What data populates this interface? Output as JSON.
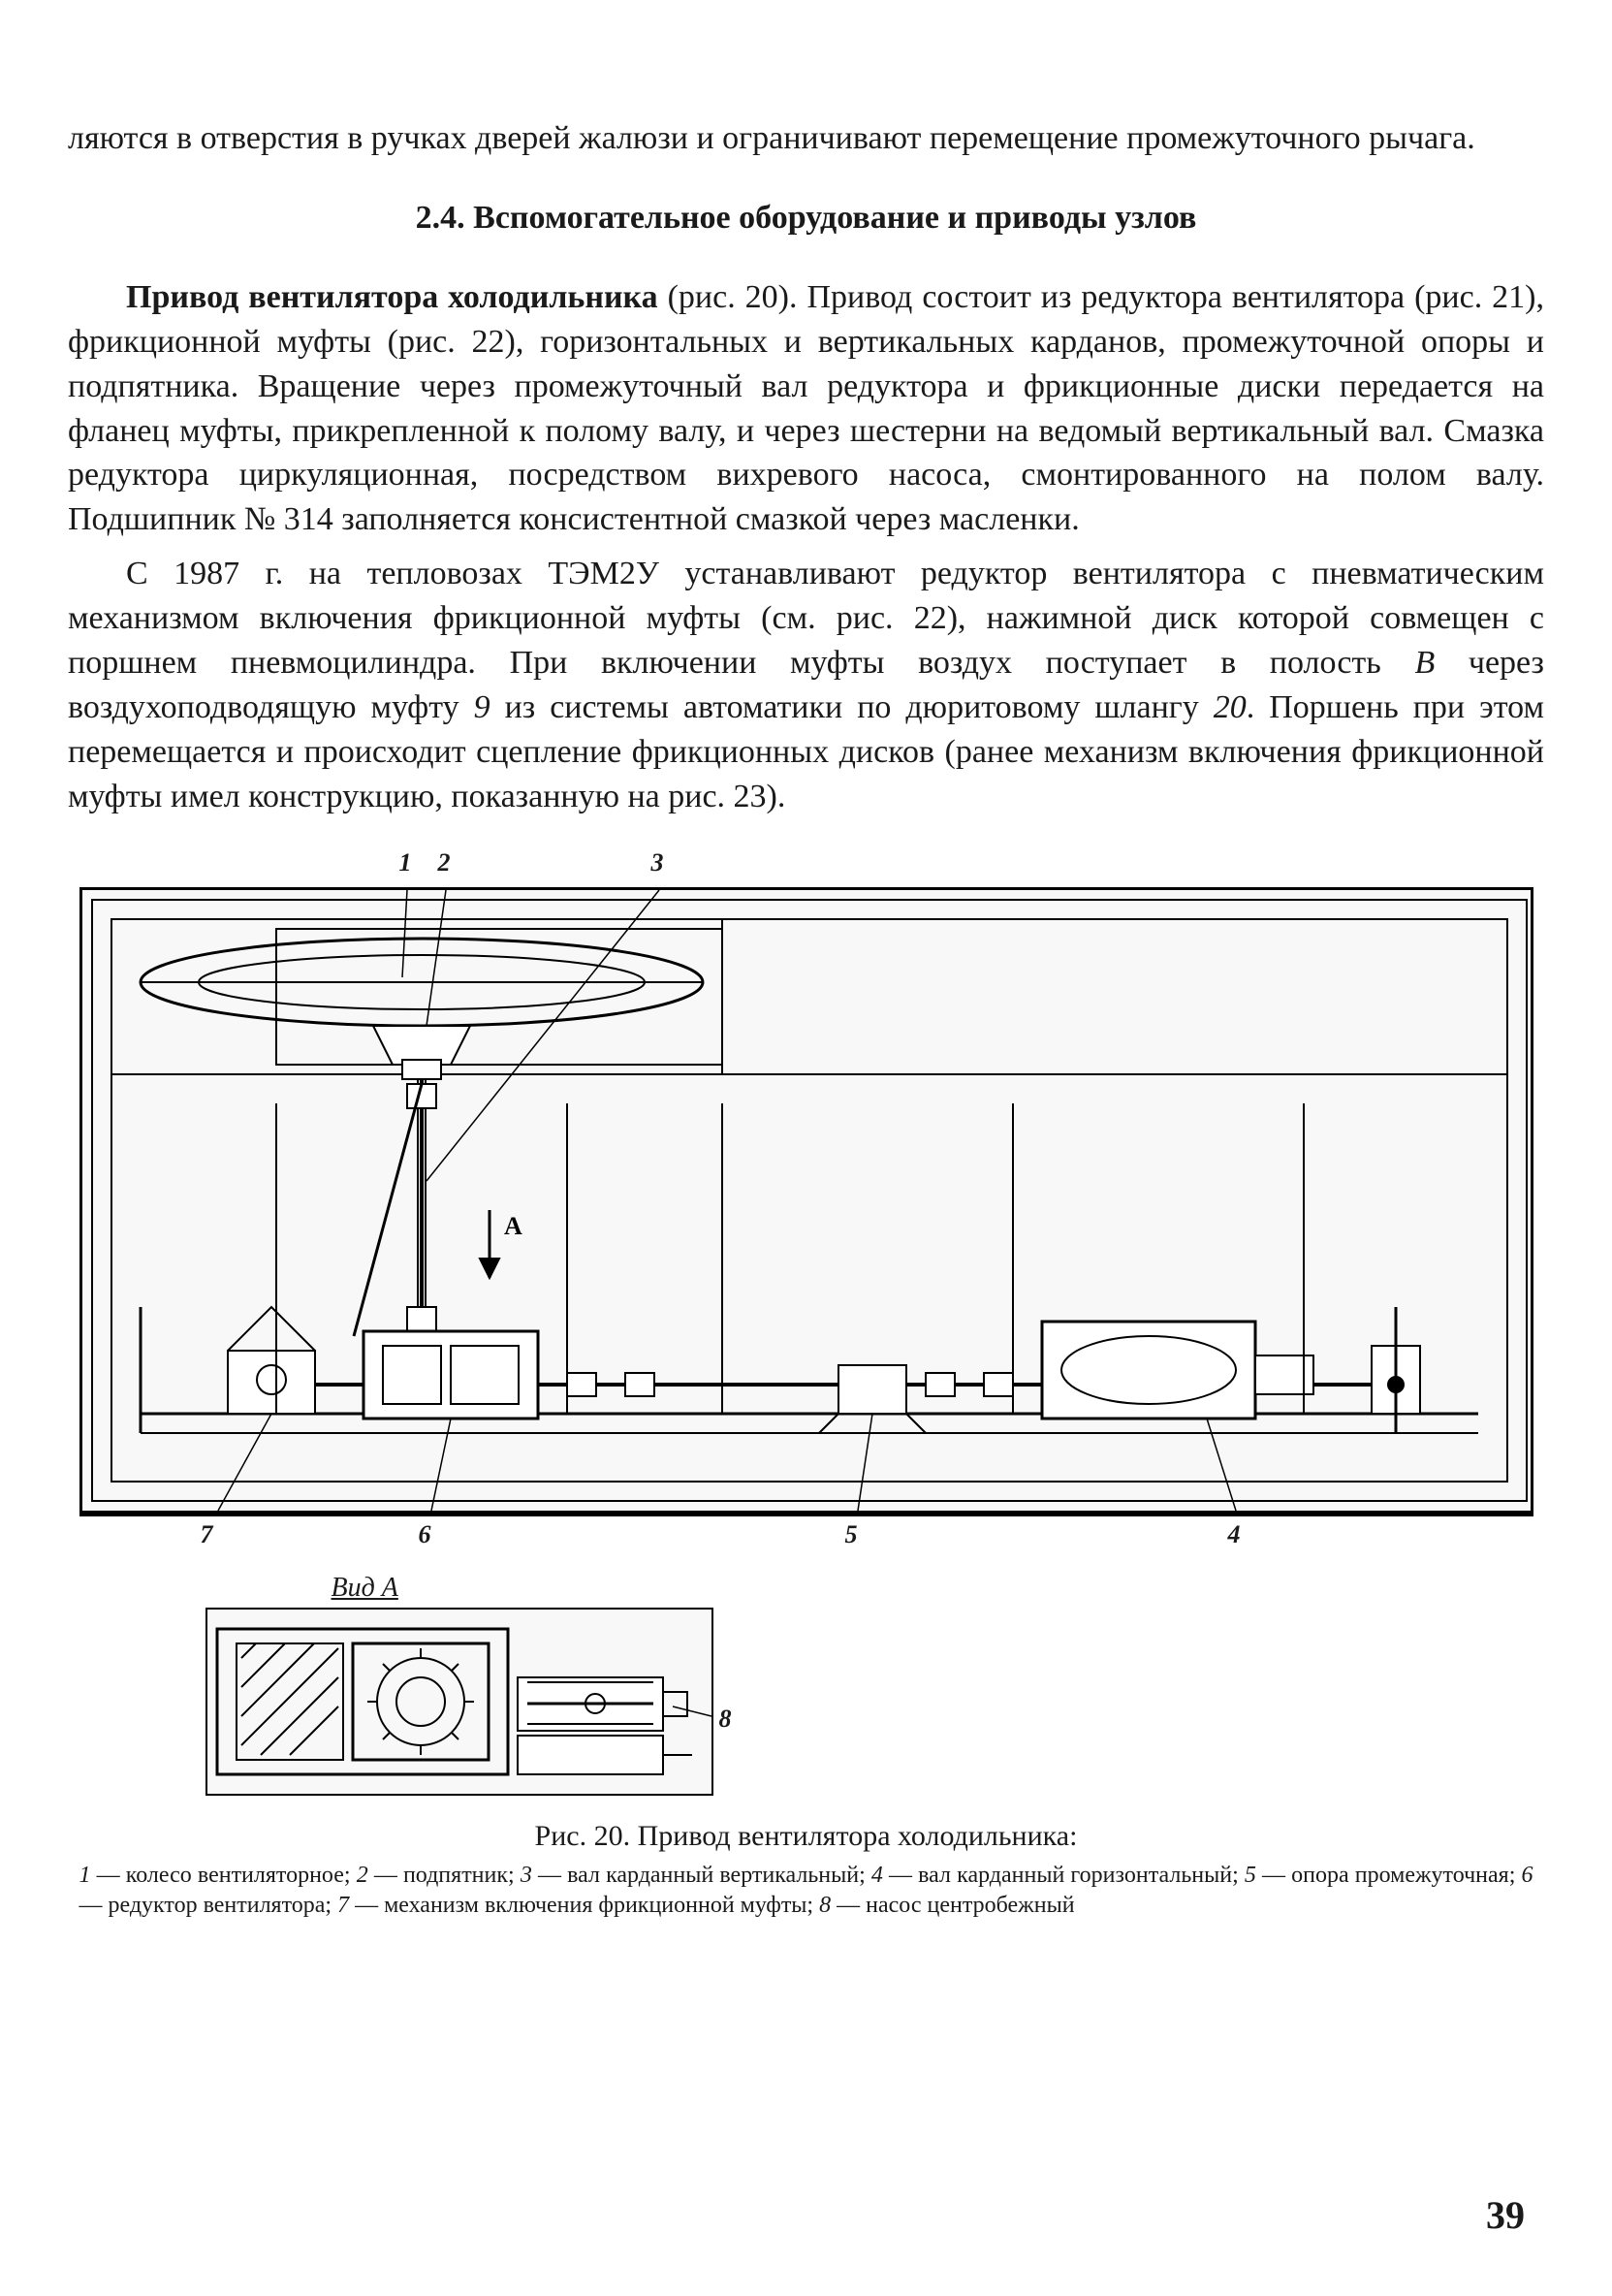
{
  "paragraph_continued": "ляются в отверстия в ручках дверей жалюзи и ограничивают пе­ремещение промежуточного рычага.",
  "section_heading": "2.4. Вспомогательное оборудование и приводы узлов",
  "para2_lead": "Привод вентилятора холодильника",
  "para2_rest": " (рис. 20). Привод состоит из редуктора вентилятора (рис. 21), фрикционной муфты (рис. 22), горизонтальных и вертикальных карданов, промежуточной опоры и подпятника. Вращение через промежуточный вал редуктора и фрикционные диски передается на фланец муфты, прикрепленной к полому валу, и через шестерни на ведомый вертикальный вал. Смазка редуктора циркуляционная, посредством вихревого насоса, смонтированного на полом валу. Подшипник № 314 заполняется консистентной смазкой через масленки.",
  "para3_a": "С 1987 г. на тепловозах ТЭМ2У устанавливают редуктор вен­тилятора с пневматическим механизмом включения фрикционной муфты (см. рис. 22), нажимной диск которой совмещен с поршнем пневмоцилиндра. При включении муфты воздух поступает в по­лость ",
  "para3_B": "В",
  "para3_b": " через воздухоподводящую муфту ",
  "para3_9": "9",
  "para3_c": " из системы автомати­ки по дюритовому шлангу ",
  "para3_20": "20",
  "para3_d": ". Поршень при этом перемещается и происходит сцепление фрикционных дисков (ранее механизм вклю­чения фрикционной муфты имел конструкцию, показанную на рис. 23).",
  "figure": {
    "main_callouts_top": [
      "1",
      "2",
      "3"
    ],
    "main_callouts_bottom": [
      "7",
      "6",
      "5",
      "4"
    ],
    "arrow_label": "А",
    "sub_label": "Вид А",
    "sub_callout": "8",
    "caption": "Рис. 20. Привод вентилятора холодильника:",
    "legend_parts": [
      {
        "n": "1",
        "t": " — колесо вентиляторное; "
      },
      {
        "n": "2",
        "t": " — подпятник; "
      },
      {
        "n": "3",
        "t": " — вал карданный вертикальный; "
      },
      {
        "n": "4",
        "t": " — вал карданный горизонтальный; "
      },
      {
        "n": "5",
        "t": " — опора промежуточная; "
      },
      {
        "n": "6",
        "t": " — редуктор вентилятора; "
      },
      {
        "n": "7",
        "t": " — механизм включения фрикционной муфты; "
      },
      {
        "n": "8",
        "t": " — насос центробежный"
      }
    ]
  },
  "page_number": "39",
  "styling": {
    "body_font_size_pt": 26,
    "heading_font_size_pt": 26,
    "caption_font_size_pt": 22,
    "legend_font_size_pt": 18,
    "text_color": "#1a1a1a",
    "background": "#ffffff",
    "figure_border_color": "#000000",
    "figure_bg": "#f8f8f8"
  }
}
